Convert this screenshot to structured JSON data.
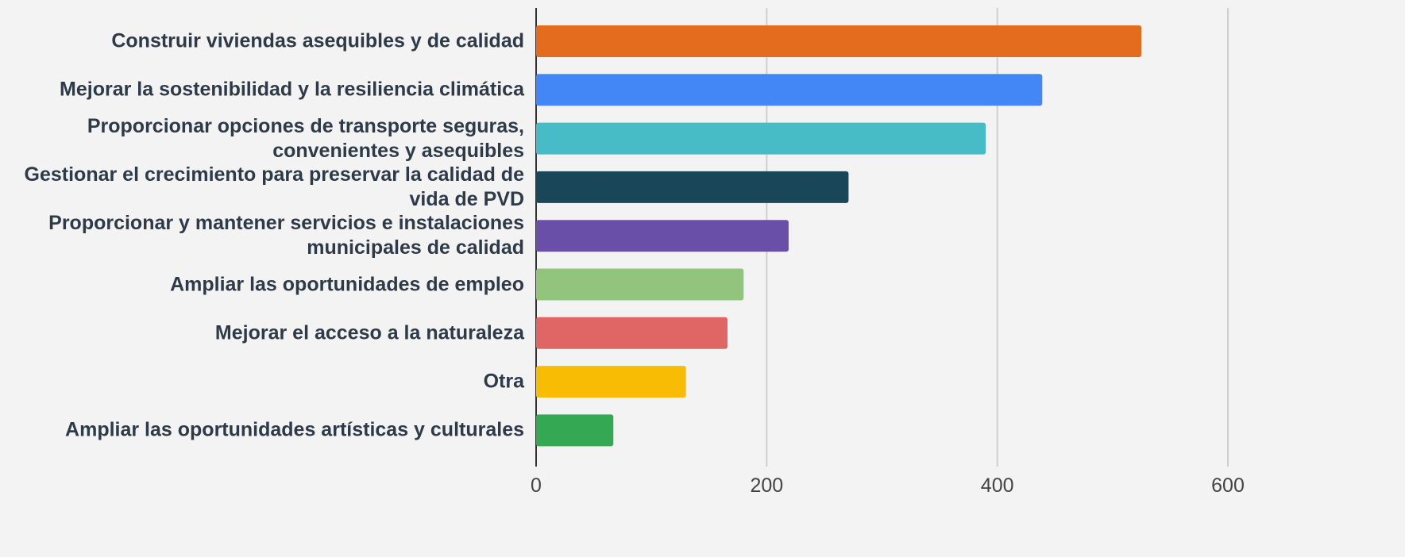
{
  "chart_data": {
    "type": "bar",
    "orientation": "horizontal",
    "categories": [
      "Construir viviendas asequibles y de calidad",
      "Mejorar la sostenibilidad y la resiliencia climática",
      "Proporcionar opciones de transporte seguras, convenientes y asequibles",
      "Gestionar el crecimiento para preservar la calidad de vida de PVD",
      "Proporcionar y mantener servicios e instalaciones municipales de calidad",
      "Ampliar las oportunidades de empleo",
      "Mejorar el acceso a la naturaleza",
      "Otra",
      "Ampliar las oportunidades artísticas y culturales"
    ],
    "values": [
      525,
      439,
      390,
      271,
      219,
      180,
      166,
      130,
      67
    ],
    "colors": [
      "#e36c1e",
      "#4287f5",
      "#47bcc7",
      "#1a4659",
      "#6a4fa8",
      "#93c47d",
      "#e06666",
      "#f9bc05",
      "#34a853"
    ],
    "xlim": [
      0,
      600
    ],
    "xticks": [
      0,
      200,
      400,
      600
    ],
    "grid": true
  }
}
